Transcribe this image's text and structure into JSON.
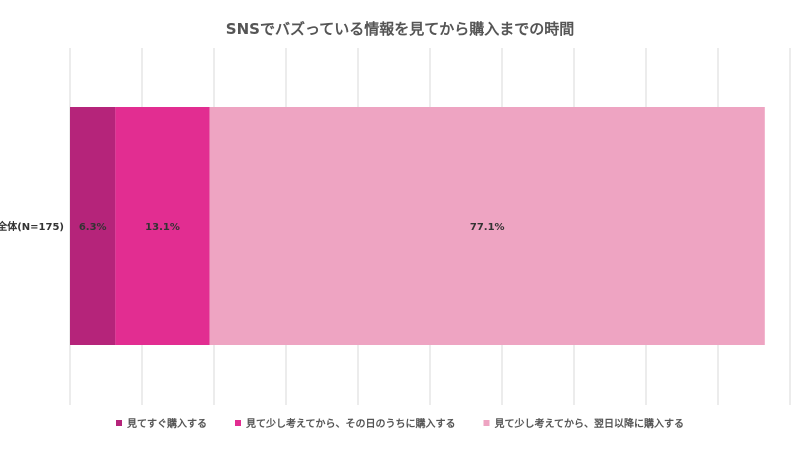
{
  "chart_data": {
    "type": "bar",
    "orientation": "horizontal",
    "stacked": true,
    "title": "SNSでバズっている情報を見てから購入までの時間",
    "categories": [
      "全体(N=175)"
    ],
    "xlim": [
      0,
      100
    ],
    "grid": true,
    "legend_position": "bottom",
    "series": [
      {
        "name": "見てすぐ購入する",
        "values": [
          6.3
        ],
        "label": "6.3%",
        "color": "#b5247a"
      },
      {
        "name": "見て少し考えてから、その日のうちに購入する",
        "values": [
          13.1
        ],
        "label": "13.1%",
        "color": "#e22d91"
      },
      {
        "name": "見て少し考えてから、翌日以降に購入する",
        "values": [
          77.1
        ],
        "label": "77.1%",
        "color": "#eea4c2"
      }
    ]
  }
}
